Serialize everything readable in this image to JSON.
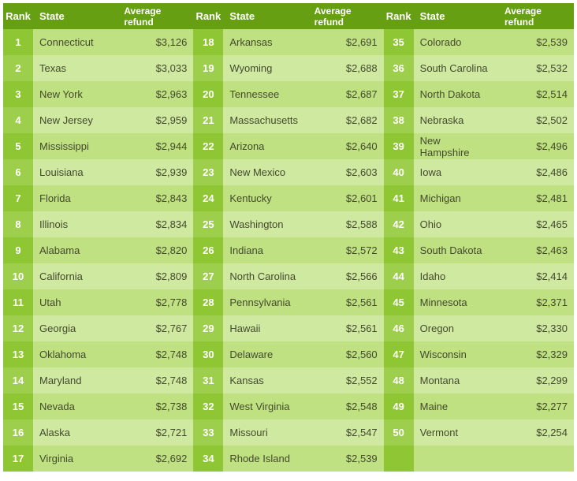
{
  "colors": {
    "header_bg": "#679f13",
    "rank_odd": "#8fc633",
    "rank_even": "#9ecf4c",
    "cell_odd": "#bfe181",
    "cell_even": "#cfe9a1",
    "header_text": "#ffffff",
    "rank_text": "#ffffff",
    "body_text": "#444a2e"
  },
  "headers": {
    "rank": "Rank",
    "state": "State",
    "refund": "Average refund"
  },
  "columns": [
    [
      {
        "rank": 1,
        "state": "Connecticut",
        "refund": "$3,126"
      },
      {
        "rank": 2,
        "state": "Texas",
        "refund": "$3,033"
      },
      {
        "rank": 3,
        "state": "New York",
        "refund": "$2,963"
      },
      {
        "rank": 4,
        "state": "New Jersey",
        "refund": "$2,959"
      },
      {
        "rank": 5,
        "state": "Mississippi",
        "refund": "$2,944"
      },
      {
        "rank": 6,
        "state": "Louisiana",
        "refund": "$2,939"
      },
      {
        "rank": 7,
        "state": "Florida",
        "refund": "$2,843"
      },
      {
        "rank": 8,
        "state": "Illinois",
        "refund": "$2,834"
      },
      {
        "rank": 9,
        "state": "Alabama",
        "refund": "$2,820"
      },
      {
        "rank": 10,
        "state": "California",
        "refund": "$2,809"
      },
      {
        "rank": 11,
        "state": "Utah",
        "refund": "$2,778"
      },
      {
        "rank": 12,
        "state": "Georgia",
        "refund": "$2,767"
      },
      {
        "rank": 13,
        "state": "Oklahoma",
        "refund": "$2,748"
      },
      {
        "rank": 14,
        "state": "Maryland",
        "refund": "$2,748"
      },
      {
        "rank": 15,
        "state": "Nevada",
        "refund": "$2,738"
      },
      {
        "rank": 16,
        "state": "Alaska",
        "refund": "$2,721"
      },
      {
        "rank": 17,
        "state": "Virginia",
        "refund": "$2,692"
      }
    ],
    [
      {
        "rank": 18,
        "state": "Arkansas",
        "refund": "$2,691"
      },
      {
        "rank": 19,
        "state": "Wyoming",
        "refund": "$2,688"
      },
      {
        "rank": 20,
        "state": "Tennessee",
        "refund": "$2,687"
      },
      {
        "rank": 21,
        "state": "Massachusetts",
        "refund": "$2,682"
      },
      {
        "rank": 22,
        "state": "Arizona",
        "refund": "$2,640"
      },
      {
        "rank": 23,
        "state": "New Mexico",
        "refund": "$2,603"
      },
      {
        "rank": 24,
        "state": "Kentucky",
        "refund": "$2,601"
      },
      {
        "rank": 25,
        "state": "Washington",
        "refund": "$2,588"
      },
      {
        "rank": 26,
        "state": "Indiana",
        "refund": "$2,572"
      },
      {
        "rank": 27,
        "state": "North Carolina",
        "refund": "$2,566"
      },
      {
        "rank": 28,
        "state": "Pennsylvania",
        "refund": "$2,561"
      },
      {
        "rank": 29,
        "state": "Hawaii",
        "refund": "$2,561"
      },
      {
        "rank": 30,
        "state": "Delaware",
        "refund": "$2,560"
      },
      {
        "rank": 31,
        "state": "Kansas",
        "refund": "$2,552"
      },
      {
        "rank": 32,
        "state": "West Virginia",
        "refund": "$2,548"
      },
      {
        "rank": 33,
        "state": "Missouri",
        "refund": "$2,547"
      },
      {
        "rank": 34,
        "state": "Rhode Island",
        "refund": "$2,539"
      }
    ],
    [
      {
        "rank": 35,
        "state": "Colorado",
        "refund": "$2,539"
      },
      {
        "rank": 36,
        "state": "South Carolina",
        "refund": "$2,532"
      },
      {
        "rank": 37,
        "state": "North Dakota",
        "refund": "$2,514"
      },
      {
        "rank": 38,
        "state": "Nebraska",
        "refund": "$2,502"
      },
      {
        "rank": 39,
        "state": "New Hampshire",
        "refund": "$2,496"
      },
      {
        "rank": 40,
        "state": "Iowa",
        "refund": "$2,486"
      },
      {
        "rank": 41,
        "state": "Michigan",
        "refund": "$2,481"
      },
      {
        "rank": 42,
        "state": "Ohio",
        "refund": "$2,465"
      },
      {
        "rank": 43,
        "state": "South Dakota",
        "refund": "$2,463"
      },
      {
        "rank": 44,
        "state": "Idaho",
        "refund": "$2,414"
      },
      {
        "rank": 45,
        "state": "Minnesota",
        "refund": "$2,371"
      },
      {
        "rank": 46,
        "state": "Oregon",
        "refund": "$2,330"
      },
      {
        "rank": 47,
        "state": "Wisconsin",
        "refund": "$2,329"
      },
      {
        "rank": 48,
        "state": "Montana",
        "refund": "$2,299"
      },
      {
        "rank": 49,
        "state": "Maine",
        "refund": "$2,277"
      },
      {
        "rank": 50,
        "state": "Vermont",
        "refund": "$2,254"
      },
      {
        "rank": "",
        "state": "",
        "refund": ""
      }
    ]
  ]
}
